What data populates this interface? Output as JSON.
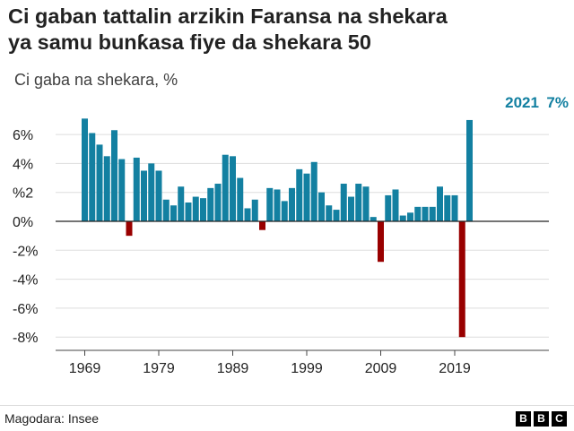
{
  "title_line1": "Ci gaban tattalin arzikin Faransa na shekara",
  "title_line2": "ya samu bunƙasa fiye da shekara 50",
  "subtitle": "Ci gaba na shekara, %",
  "source": "Magodara: Insee",
  "logo": [
    "B",
    "B",
    "C"
  ],
  "colors": {
    "positive": "#1380a1",
    "negative": "#990000",
    "highlight_label": "#1380a1"
  },
  "chart_data": {
    "type": "bar",
    "title": "Ci gaban tattalin arzikin Faransa na shekara ya samu bunƙasa fiye da shekara 50",
    "ylabel": "Ci gaba na shekara, %",
    "x": [
      1969,
      1970,
      1971,
      1972,
      1973,
      1974,
      1975,
      1976,
      1977,
      1978,
      1979,
      1980,
      1981,
      1982,
      1983,
      1984,
      1985,
      1986,
      1987,
      1988,
      1989,
      1990,
      1991,
      1992,
      1993,
      1994,
      1995,
      1996,
      1997,
      1998,
      1999,
      2000,
      2001,
      2002,
      2003,
      2004,
      2005,
      2006,
      2007,
      2008,
      2009,
      2010,
      2011,
      2012,
      2013,
      2014,
      2015,
      2016,
      2017,
      2018,
      2019,
      2020,
      2021
    ],
    "values": [
      7.1,
      6.1,
      5.3,
      4.5,
      6.3,
      4.3,
      -1.0,
      4.4,
      3.5,
      4.0,
      3.5,
      1.5,
      1.1,
      2.4,
      1.3,
      1.7,
      1.6,
      2.3,
      2.6,
      4.6,
      4.5,
      3.0,
      0.9,
      1.5,
      -0.6,
      2.3,
      2.2,
      1.4,
      2.3,
      3.6,
      3.3,
      4.1,
      2.0,
      1.1,
      0.8,
      2.6,
      1.7,
      2.6,
      2.4,
      0.3,
      -2.8,
      1.8,
      2.2,
      0.4,
      0.6,
      1.0,
      1.0,
      1.0,
      2.4,
      1.8,
      1.8,
      -8.0,
      7.0
    ],
    "xticks": [
      1969,
      1979,
      1989,
      1999,
      2009,
      2019
    ],
    "xtick_labels": [
      "1969",
      "1979",
      "1989",
      "1999",
      "2009",
      "2019"
    ],
    "yticks": [
      6,
      4,
      2,
      0,
      -2,
      -4,
      -6,
      -8
    ],
    "ytick_labels": [
      "6%",
      "4%",
      "%2",
      "0%",
      "-2%",
      "-4%",
      "-6%",
      "-8%"
    ],
    "ylim": [
      -8,
      7.5
    ],
    "grid": true,
    "annotation": {
      "year_label": "2021",
      "value_label": "7%"
    }
  }
}
